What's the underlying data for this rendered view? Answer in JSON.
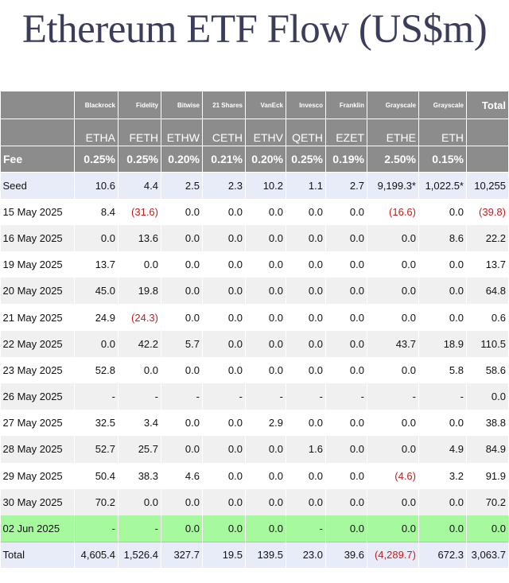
{
  "title": "Ethereum ETF Flow (US$m)",
  "colors": {
    "header_bg": "#8c8c8c",
    "highlight_row": "#a6fa9d",
    "negative": "#cc1a1a",
    "title": "#3b3d5a"
  },
  "chart_data": {
    "type": "table",
    "title": "Ethereum ETF Flow (US$m)",
    "issuers": [
      "Blackrock",
      "Fidelity",
      "Bitwise",
      "21 Shares",
      "VanEck",
      "Invesco",
      "Franklin",
      "Grayscale",
      "Grayscale"
    ],
    "total_header": "Total",
    "tickers": [
      "ETHA",
      "FETH",
      "ETHW",
      "CETH",
      "ETHV",
      "QETH",
      "EZET",
      "ETHE",
      "ETH"
    ],
    "fee_label": "Fee",
    "fees": [
      "0.25%",
      "0.25%",
      "0.20%",
      "0.21%",
      "0.20%",
      "0.25%",
      "0.19%",
      "2.50%",
      "0.15%"
    ],
    "rows": [
      {
        "label": "Seed",
        "cells": [
          "10.6",
          "4.4",
          "2.5",
          "2.3",
          "10.2",
          "1.1",
          "2.7",
          "9,199.3*",
          "1,022.5*",
          "10,255"
        ]
      },
      {
        "label": "15 May 2025",
        "cells": [
          "8.4",
          "(31.6)",
          "0.0",
          "0.0",
          "0.0",
          "0.0",
          "0.0",
          "(16.6)",
          "0.0",
          "(39.8)"
        ]
      },
      {
        "label": "16 May 2025",
        "cells": [
          "0.0",
          "13.6",
          "0.0",
          "0.0",
          "0.0",
          "0.0",
          "0.0",
          "0.0",
          "8.6",
          "22.2"
        ]
      },
      {
        "label": "19 May 2025",
        "cells": [
          "13.7",
          "0.0",
          "0.0",
          "0.0",
          "0.0",
          "0.0",
          "0.0",
          "0.0",
          "0.0",
          "13.7"
        ]
      },
      {
        "label": "20 May 2025",
        "cells": [
          "45.0",
          "19.8",
          "0.0",
          "0.0",
          "0.0",
          "0.0",
          "0.0",
          "0.0",
          "0.0",
          "64.8"
        ]
      },
      {
        "label": "21 May 2025",
        "cells": [
          "24.9",
          "(24.3)",
          "0.0",
          "0.0",
          "0.0",
          "0.0",
          "0.0",
          "0.0",
          "0.0",
          "0.6"
        ]
      },
      {
        "label": "22 May 2025",
        "cells": [
          "0.0",
          "42.2",
          "5.7",
          "0.0",
          "0.0",
          "0.0",
          "0.0",
          "43.7",
          "18.9",
          "110.5"
        ]
      },
      {
        "label": "23 May 2025",
        "cells": [
          "52.8",
          "0.0",
          "0.0",
          "0.0",
          "0.0",
          "0.0",
          "0.0",
          "0.0",
          "5.8",
          "58.6"
        ]
      },
      {
        "label": "26 May 2025",
        "cells": [
          "-",
          "-",
          "-",
          "-",
          "-",
          "-",
          "-",
          "-",
          "-",
          "0.0"
        ]
      },
      {
        "label": "27 May 2025",
        "cells": [
          "32.5",
          "3.4",
          "0.0",
          "0.0",
          "2.9",
          "0.0",
          "0.0",
          "0.0",
          "0.0",
          "38.8"
        ]
      },
      {
        "label": "28 May 2025",
        "cells": [
          "52.7",
          "25.7",
          "0.0",
          "0.0",
          "0.0",
          "1.6",
          "0.0",
          "0.0",
          "4.9",
          "84.9"
        ]
      },
      {
        "label": "29 May 2025",
        "cells": [
          "50.4",
          "38.3",
          "4.6",
          "0.0",
          "0.0",
          "0.0",
          "0.0",
          "(4.6)",
          "3.2",
          "91.9"
        ]
      },
      {
        "label": "30 May 2025",
        "cells": [
          "70.2",
          "0.0",
          "0.0",
          "0.0",
          "0.0",
          "0.0",
          "0.0",
          "0.0",
          "0.0",
          "70.2"
        ]
      },
      {
        "label": "02 Jun 2025",
        "cells": [
          "-",
          "-",
          "0.0",
          "0.0",
          "0.0",
          "-",
          "0.0",
          "0.0",
          "0.0",
          "0.0"
        ],
        "highlight": true
      },
      {
        "label": "Total",
        "cells": [
          "4,605.4",
          "1,526.4",
          "327.7",
          "19.5",
          "139.5",
          "23.0",
          "39.6",
          "(4,289.7)",
          "672.3",
          "3,063.7"
        ]
      }
    ]
  }
}
